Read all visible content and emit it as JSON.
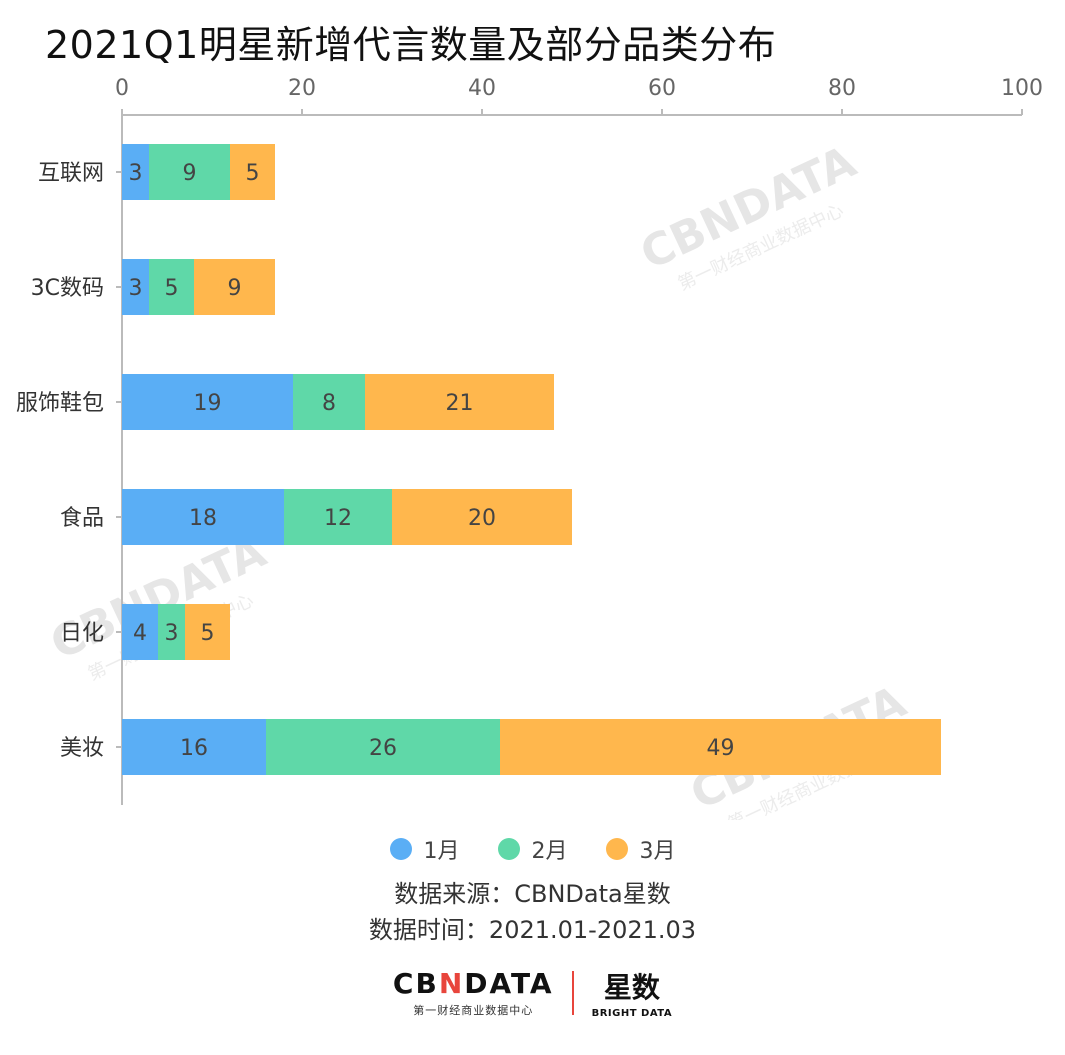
{
  "title": "2021Q1明星新增代言数量及部分品类分布",
  "chart_data": {
    "type": "bar",
    "orientation": "horizontal",
    "stacked": true,
    "categories": [
      "互联网",
      "3C数码",
      "服饰鞋包",
      "食品",
      "日化",
      "美妆"
    ],
    "series": [
      {
        "name": "1月",
        "values": [
          3,
          3,
          19,
          18,
          4,
          16
        ],
        "color": "#5aaef5"
      },
      {
        "name": "2月",
        "values": [
          9,
          5,
          8,
          12,
          3,
          26
        ],
        "color": "#5fd8a8"
      },
      {
        "name": "3月",
        "values": [
          5,
          9,
          21,
          20,
          5,
          49
        ],
        "color": "#ffb74d"
      }
    ],
    "xlim": [
      0,
      100
    ],
    "xticks": [
      0,
      20,
      40,
      60,
      80,
      100
    ],
    "x_axis_position": "top",
    "grid": false,
    "legend_position": "bottom"
  },
  "watermark": {
    "main": "CBNDATA",
    "sub": "第一财经商业数据中心"
  },
  "source": {
    "line1": "数据来源：CBNData星数",
    "line2": "数据时间：2021.01-2021.03"
  },
  "footer": {
    "brand_left_pre": "CB",
    "brand_left_x": "N",
    "brand_left_post": "DATA",
    "brand_left_sub": "第一财经商业数据中心",
    "brand_right_main": "星数",
    "brand_right_sub": "BRIGHT DATA"
  }
}
